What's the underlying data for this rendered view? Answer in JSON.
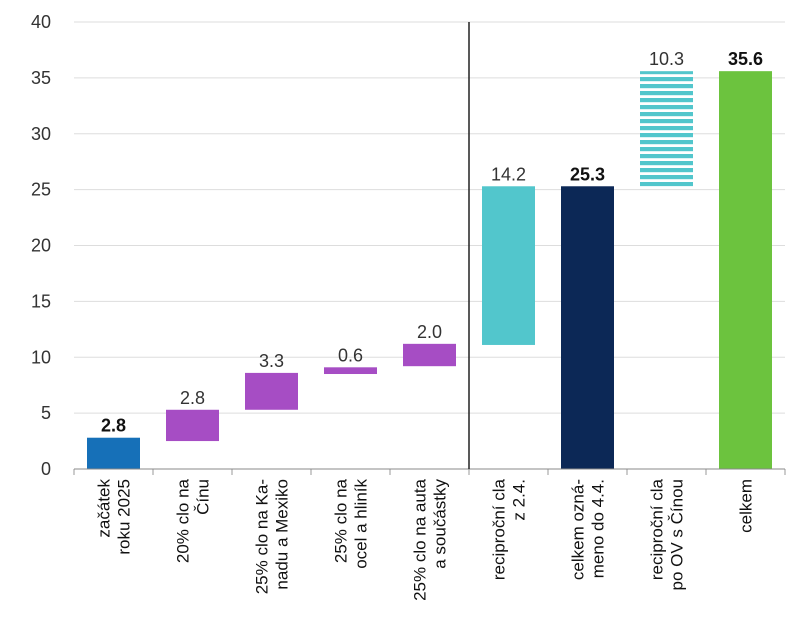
{
  "chart_data": {
    "type": "bar",
    "subtype": "waterfall",
    "title": "",
    "xlabel": "",
    "ylabel": "",
    "ylim": [
      0,
      40
    ],
    "yticks": [
      0,
      5,
      10,
      15,
      20,
      25,
      30,
      35,
      40
    ],
    "grid": true,
    "bars": [
      {
        "label_lines": [
          "začátek",
          "roku 2025"
        ],
        "base": 0,
        "value": 2.8,
        "label": "2.8",
        "bold": true,
        "color": "#1670b8",
        "pattern": "solid"
      },
      {
        "label_lines": [
          "20% clo na",
          "Čínu"
        ],
        "base": 2.5,
        "value": 2.8,
        "label": "2.8",
        "bold": false,
        "color": "#a64dc4",
        "pattern": "solid"
      },
      {
        "label_lines": [
          "25% clo na Ka-",
          "nadu a Mexiko"
        ],
        "base": 5.3,
        "value": 3.3,
        "label": "3.3",
        "bold": false,
        "color": "#a64dc4",
        "pattern": "solid"
      },
      {
        "label_lines": [
          "25% clo na",
          "ocel a hliník"
        ],
        "base": 8.5,
        "value": 0.6,
        "label": "0.6",
        "bold": false,
        "color": "#a64dc4",
        "pattern": "solid"
      },
      {
        "label_lines": [
          "25% clo na auta",
          "a součástky"
        ],
        "base": 9.2,
        "value": 2.0,
        "label": "2.0",
        "bold": false,
        "color": "#a64dc4",
        "pattern": "solid"
      },
      {
        "label_lines": [
          "reciproční cla",
          "z 2.4."
        ],
        "base": 11.1,
        "value": 14.2,
        "label": "14.2",
        "bold": false,
        "color": "#52c6cc",
        "pattern": "solid"
      },
      {
        "label_lines": [
          "celkem ozná-",
          "meno do 4.4."
        ],
        "base": 0,
        "value": 25.3,
        "label": "25.3",
        "bold": true,
        "color": "#0c2856",
        "pattern": "solid"
      },
      {
        "label_lines": [
          "reciproční cla",
          "po  OV s Čínou"
        ],
        "base": 25.3,
        "value": 10.3,
        "label": "10.3",
        "bold": false,
        "color": "#52c6cc",
        "pattern": "striped"
      },
      {
        "label_lines": [
          "celkem"
        ],
        "base": 0,
        "value": 35.6,
        "label": "35.6",
        "bold": true,
        "color": "#6cc33e",
        "pattern": "solid"
      }
    ],
    "separator_after_index": 4
  }
}
